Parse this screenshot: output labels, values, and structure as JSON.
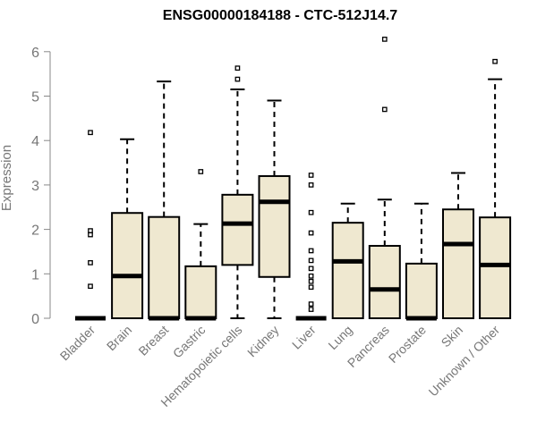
{
  "chart_data": {
    "type": "box",
    "title": "ENSG00000184188 - CTC-512J14.7",
    "xlabel": "",
    "ylabel": "Expression",
    "ylim": [
      0,
      6.3
    ],
    "yticks": [
      0,
      1,
      2,
      3,
      4,
      5,
      6
    ],
    "grid": false,
    "box_color": "#efe8d0",
    "categories": [
      "Bladder",
      "Brain",
      "Breast",
      "Gastric",
      "Hematopoietic cells",
      "Kidney",
      "Liver",
      "Lung",
      "Pancreas",
      "Prostate",
      "Skin",
      "Unknown / Other"
    ],
    "boxes": [
      {
        "q1": 0,
        "median": 0,
        "q3": 0,
        "whisker_low": 0,
        "whisker_high": 0,
        "outliers": [
          0.72,
          1.25,
          1.88,
          1.97,
          4.18
        ]
      },
      {
        "q1": 0,
        "median": 0.95,
        "q3": 2.37,
        "whisker_low": 0,
        "whisker_high": 4.03,
        "outliers": []
      },
      {
        "q1": 0,
        "median": 0,
        "q3": 2.28,
        "whisker_low": 0,
        "whisker_high": 5.33,
        "outliers": []
      },
      {
        "q1": 0,
        "median": 0,
        "q3": 1.17,
        "whisker_low": 0,
        "whisker_high": 2.12,
        "outliers": [
          3.3
        ]
      },
      {
        "q1": 1.2,
        "median": 2.13,
        "q3": 2.78,
        "whisker_low": 0,
        "whisker_high": 5.15,
        "outliers": [
          5.38,
          5.63
        ]
      },
      {
        "q1": 0.93,
        "median": 2.62,
        "q3": 3.2,
        "whisker_low": 0,
        "whisker_high": 4.9,
        "outliers": []
      },
      {
        "q1": 0,
        "median": 0,
        "q3": 0,
        "whisker_low": 0,
        "whisker_high": 0,
        "outliers": [
          0.2,
          0.32,
          0.7,
          0.83,
          0.95,
          1.12,
          1.3,
          1.52,
          1.92,
          2.38,
          3.0,
          3.22
        ]
      },
      {
        "q1": 0,
        "median": 1.28,
        "q3": 2.15,
        "whisker_low": 0,
        "whisker_high": 2.58,
        "outliers": []
      },
      {
        "q1": 0,
        "median": 0.65,
        "q3": 1.63,
        "whisker_low": 0,
        "whisker_high": 2.67,
        "outliers": [
          4.7,
          6.28
        ]
      },
      {
        "q1": 0,
        "median": 0,
        "q3": 1.23,
        "whisker_low": 0,
        "whisker_high": 2.58,
        "outliers": []
      },
      {
        "q1": 0,
        "median": 1.67,
        "q3": 2.45,
        "whisker_low": 0,
        "whisker_high": 3.27,
        "outliers": []
      },
      {
        "q1": 0,
        "median": 1.2,
        "q3": 2.27,
        "whisker_low": 0,
        "whisker_high": 5.38,
        "outliers": [
          5.78
        ]
      }
    ]
  }
}
